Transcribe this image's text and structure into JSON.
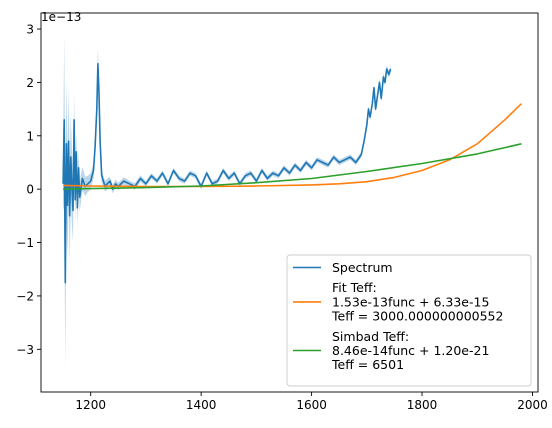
{
  "chart_data": {
    "type": "line",
    "title": "",
    "xlabel": "",
    "ylabel": "",
    "y_offset_label": "1e−13",
    "xlim": [
      1110,
      2010
    ],
    "ylim": [
      -3.8,
      3.3
    ],
    "x_ticks": [
      1200,
      1400,
      1600,
      1800,
      2000
    ],
    "x_tick_labels": [
      "1200",
      "1400",
      "1600",
      "1800",
      "2000"
    ],
    "y_ticks": [
      -3,
      -2,
      -1,
      0,
      1,
      2,
      3
    ],
    "y_tick_labels": [
      "−3",
      "−2",
      "−1",
      "0",
      "1",
      "2",
      "3"
    ],
    "grid": false,
    "legend_position": "lower-right",
    "series": [
      {
        "name": "Spectrum",
        "color": "#1f77b4",
        "x": [
          1150,
          1152,
          1154,
          1156,
          1158,
          1160,
          1162,
          1164,
          1166,
          1168,
          1170,
          1172,
          1174,
          1176,
          1178,
          1180,
          1185,
          1190,
          1195,
          1200,
          1205,
          1208,
          1211,
          1213,
          1215,
          1217,
          1220,
          1223,
          1226,
          1230,
          1235,
          1240,
          1245,
          1250,
          1260,
          1270,
          1280,
          1290,
          1300,
          1310,
          1320,
          1330,
          1340,
          1350,
          1360,
          1370,
          1380,
          1390,
          1400,
          1410,
          1420,
          1430,
          1440,
          1450,
          1460,
          1470,
          1480,
          1490,
          1500,
          1510,
          1520,
          1530,
          1540,
          1550,
          1560,
          1570,
          1580,
          1590,
          1600,
          1610,
          1620,
          1630,
          1640,
          1650,
          1660,
          1670,
          1680,
          1690,
          1695,
          1700,
          1703,
          1706,
          1710,
          1713,
          1716,
          1720,
          1723,
          1726,
          1730,
          1733,
          1736,
          1740,
          1743
        ],
        "y": [
          0.1,
          1.3,
          -1.75,
          0.85,
          -0.3,
          0.9,
          -0.5,
          0.6,
          0.05,
          -0.4,
          1.3,
          -0.2,
          0.7,
          -0.35,
          0.4,
          -0.15,
          0.2,
          0.05,
          0.1,
          0.15,
          0.35,
          0.8,
          1.5,
          2.35,
          1.8,
          0.9,
          0.25,
          0.15,
          0.05,
          0.1,
          0.15,
          0.0,
          0.1,
          0.05,
          0.15,
          0.1,
          0.05,
          0.2,
          0.1,
          0.25,
          0.15,
          0.3,
          0.1,
          0.35,
          0.2,
          0.15,
          0.3,
          0.25,
          0.05,
          0.3,
          0.1,
          0.15,
          0.35,
          0.2,
          0.3,
          0.1,
          0.25,
          0.3,
          0.15,
          0.35,
          0.2,
          0.3,
          0.25,
          0.4,
          0.3,
          0.45,
          0.35,
          0.5,
          0.4,
          0.55,
          0.5,
          0.45,
          0.6,
          0.5,
          0.55,
          0.6,
          0.5,
          0.65,
          0.9,
          1.2,
          1.5,
          1.35,
          1.6,
          1.9,
          1.5,
          1.8,
          2.0,
          1.7,
          2.1,
          2.0,
          2.25,
          2.15,
          2.25
        ],
        "band_halfwidth": [
          0.5,
          1.6,
          1.6,
          1.2,
          1.0,
          1.0,
          0.9,
          0.8,
          0.7,
          0.6,
          0.5,
          0.45,
          0.4,
          0.35,
          0.3,
          0.28,
          0.22,
          0.18,
          0.15,
          0.15,
          0.15,
          0.18,
          0.2,
          0.3,
          0.25,
          0.2,
          0.12,
          0.1,
          0.1,
          0.1,
          0.08,
          0.08,
          0.08,
          0.07,
          0.07,
          0.06,
          0.06,
          0.06,
          0.05,
          0.05,
          0.05,
          0.05,
          0.05,
          0.05,
          0.05,
          0.05,
          0.05,
          0.05,
          0.05,
          0.05,
          0.05,
          0.05,
          0.05,
          0.05,
          0.05,
          0.05,
          0.05,
          0.05,
          0.05,
          0.05,
          0.05,
          0.05,
          0.05,
          0.05,
          0.05,
          0.05,
          0.05,
          0.05,
          0.05,
          0.05,
          0.05,
          0.05,
          0.05,
          0.05,
          0.05,
          0.05,
          0.05,
          0.05,
          0.05,
          0.06,
          0.06,
          0.06,
          0.06,
          0.06,
          0.06,
          0.06,
          0.07,
          0.07,
          0.07,
          0.07,
          0.07,
          0.07,
          0.07
        ]
      },
      {
        "name": "Fit Teff:\n1.53e-13func + 6.33e-15\nTeff = 3000.000000000552",
        "color": "#ff7f0e",
        "x": [
          1150,
          1200,
          1300,
          1400,
          1500,
          1600,
          1650,
          1700,
          1750,
          1800,
          1850,
          1900,
          1950,
          1980
        ],
        "y": [
          0.07,
          0.06,
          0.05,
          0.05,
          0.06,
          0.08,
          0.1,
          0.14,
          0.22,
          0.35,
          0.55,
          0.85,
          1.3,
          1.6
        ]
      },
      {
        "name": "Simbad Teff:\n8.46e-14func + 1.20e-21\nTeff = 6501",
        "color": "#2ca02c",
        "x": [
          1150,
          1200,
          1300,
          1400,
          1500,
          1600,
          1700,
          1800,
          1900,
          1980
        ],
        "y": [
          0.0,
          0.01,
          0.03,
          0.06,
          0.12,
          0.2,
          0.33,
          0.48,
          0.66,
          0.85
        ]
      }
    ]
  }
}
